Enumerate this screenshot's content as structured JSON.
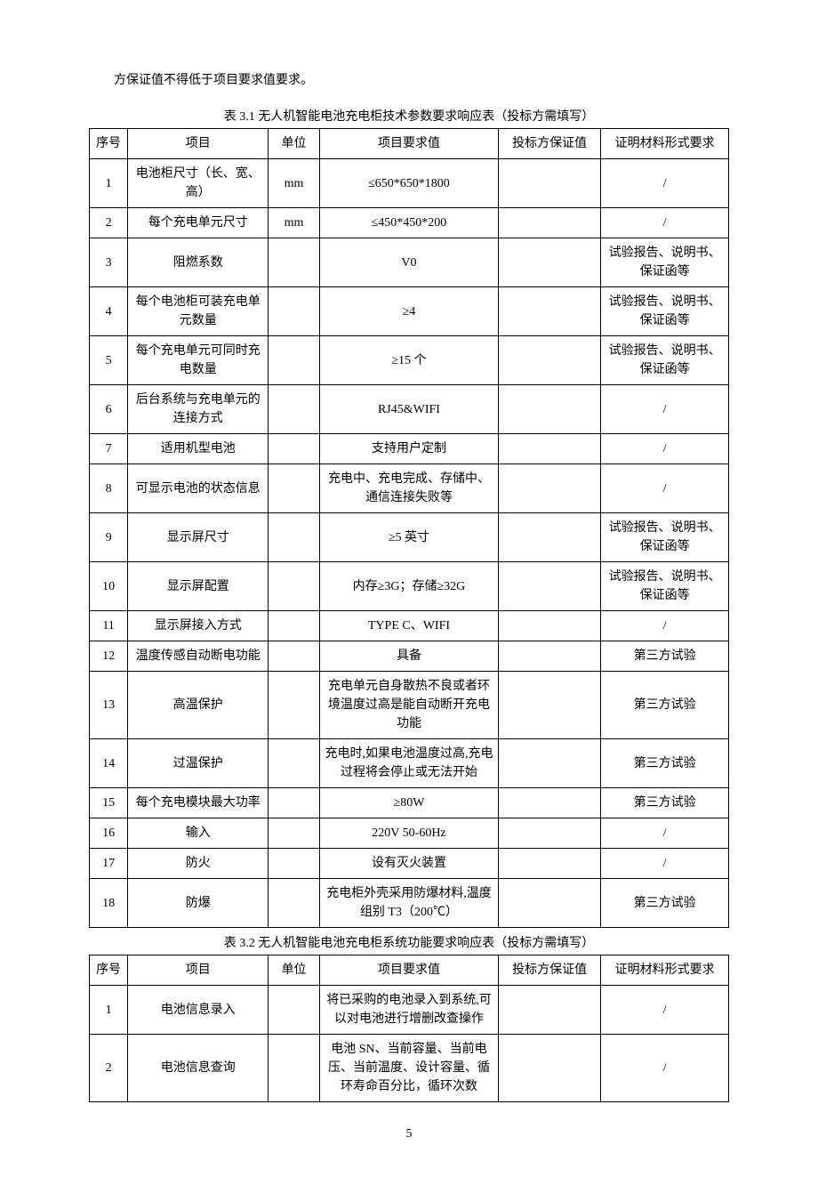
{
  "intro_text": "方保证值不得低于项目要求值要求。",
  "caption1": "表 3.1 无人机智能电池充电柜技术参数要求响应表（投标方需填写）",
  "caption2": "表 3.2  无人机智能电池充电柜系统功能要求响应表（投标方需填写）",
  "headers": {
    "seq": "序号",
    "item": "项目",
    "unit": "单位",
    "req": "项目要求值",
    "bid": "投标方保证值",
    "proof": "证明材料形式要求"
  },
  "table1": [
    {
      "seq": "1",
      "item": "电池柜尺寸（长、宽、高）",
      "unit": "mm",
      "req": "≤650*650*1800",
      "bid": "",
      "proof": "/"
    },
    {
      "seq": "2",
      "item": "每个充电单元尺寸",
      "unit": "mm",
      "req": "≤450*450*200",
      "bid": "",
      "proof": "/"
    },
    {
      "seq": "3",
      "item": "阻燃系数",
      "unit": "",
      "req": "V0",
      "bid": "",
      "proof": "试验报告、说明书、保证函等"
    },
    {
      "seq": "4",
      "item": "每个电池柜可装充电单元数量",
      "unit": "",
      "req": "≥4",
      "bid": "",
      "proof": "试验报告、说明书、保证函等"
    },
    {
      "seq": "5",
      "item": "每个充电单元可同时充电数量",
      "unit": "",
      "req": "≥15 个",
      "bid": "",
      "proof": "试验报告、说明书、保证函等"
    },
    {
      "seq": "6",
      "item": "后台系统与充电单元的连接方式",
      "unit": "",
      "req": "RJ45&WIFI",
      "bid": "",
      "proof": "/"
    },
    {
      "seq": "7",
      "item": "适用机型电池",
      "unit": "",
      "req": "支持用户定制",
      "bid": "",
      "proof": "/"
    },
    {
      "seq": "8",
      "item": "可显示电池的状态信息",
      "unit": "",
      "req": "充电中、充电完成、存储中、通信连接失败等",
      "bid": "",
      "proof": "/"
    },
    {
      "seq": "9",
      "item": "显示屏尺寸",
      "unit": "",
      "req": "≥5 英寸",
      "bid": "",
      "proof": "试验报告、说明书、保证函等"
    },
    {
      "seq": "10",
      "item": "显示屏配置",
      "unit": "",
      "req": "内存≥3G；存储≥32G",
      "bid": "",
      "proof": "试验报告、说明书、保证函等"
    },
    {
      "seq": "11",
      "item": "显示屏接入方式",
      "unit": "",
      "req": "TYPE C、WIFI",
      "bid": "",
      "proof": "/"
    },
    {
      "seq": "12",
      "item": "温度传感自动断电功能",
      "unit": "",
      "req": "具备",
      "bid": "",
      "proof": "第三方试验"
    },
    {
      "seq": "13",
      "item": "高温保护",
      "unit": "",
      "req": "充电单元自身散热不良或者环境温度过高是能自动断开充电功能",
      "bid": "",
      "proof": "第三方试验"
    },
    {
      "seq": "14",
      "item": "过温保护",
      "unit": "",
      "req": "充电时,如果电池温度过高,充电过程将会停止或无法开始",
      "bid": "",
      "proof": "第三方试验"
    },
    {
      "seq": "15",
      "item": "每个充电模块最大功率",
      "unit": "",
      "req": "≥80W",
      "bid": "",
      "proof": "第三方试验"
    },
    {
      "seq": "16",
      "item": "输入",
      "unit": "",
      "req": "220V 50-60Hz",
      "bid": "",
      "proof": "/"
    },
    {
      "seq": "17",
      "item": "防火",
      "unit": "",
      "req": "设有灭火装置",
      "bid": "",
      "proof": "/"
    },
    {
      "seq": "18",
      "item": "防爆",
      "unit": "",
      "req": "充电柜外壳采用防爆材料,温度组别 T3（200℃）",
      "bid": "",
      "proof": "第三方试验"
    }
  ],
  "table2": [
    {
      "seq": "1",
      "item": "电池信息录入",
      "unit": "",
      "req": "将已采购的电池录入到系统,可以对电池进行增删改查操作",
      "bid": "",
      "proof": "/"
    },
    {
      "seq": "2",
      "item": "电池信息查询",
      "unit": "",
      "req": "电池 SN、当前容量、当前电压、当前温度、设计容量、循环寿命百分比，循环次数",
      "bid": "",
      "proof": "/"
    }
  ],
  "page_number": "5"
}
